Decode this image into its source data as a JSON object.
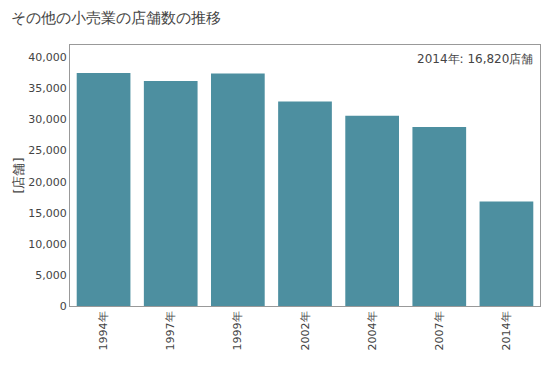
{
  "chart_data": {
    "type": "bar",
    "title": "その他の小売業の店舗数の推移",
    "ylabel": "[店舗]",
    "annotation": "2014年: 16,820店舗",
    "categories": [
      "1994年",
      "1997年",
      "1999年",
      "2002年",
      "2004年",
      "2007年",
      "2014年"
    ],
    "values": [
      37500,
      36200,
      37400,
      32900,
      30600,
      28800,
      16820
    ],
    "color": "#4d8fa0",
    "ylim": [
      0,
      42000
    ],
    "yticks": [
      0,
      {
        "value": 5000,
        "label": "5,000"
      },
      {
        "value": 10000,
        "label": "10,000"
      },
      {
        "value": 15000,
        "label": "15,000"
      },
      {
        "value": 20000,
        "label": "20,000"
      },
      {
        "value": 25000,
        "label": "25,000"
      },
      {
        "value": 30000,
        "label": "30,000"
      },
      {
        "value": 35000,
        "label": "35,000"
      },
      {
        "value": 40000,
        "label": "40,000"
      }
    ],
    "grid": false
  }
}
